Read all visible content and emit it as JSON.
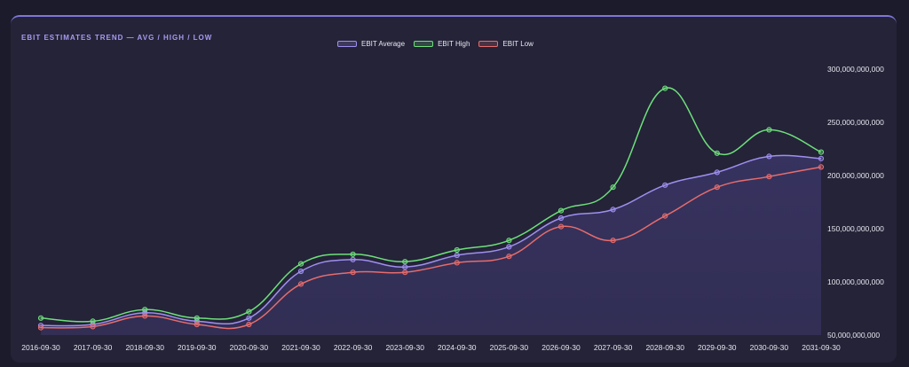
{
  "card": {
    "title": "EBIT ESTIMATES TREND — AVG / HIGH / LOW"
  },
  "chart_data": {
    "type": "line",
    "title": "EBIT ESTIMATES TREND — AVG / HIGH / LOW",
    "categories": [
      "2016-09-30",
      "2017-09-30",
      "2018-09-30",
      "2019-09-30",
      "2020-09-30",
      "2021-09-30",
      "2022-09-30",
      "2023-09-30",
      "2024-09-30",
      "2025-09-30",
      "2026-09-30",
      "2027-09-30",
      "2028-09-30",
      "2029-09-30",
      "2030-09-30",
      "2031-09-30"
    ],
    "series": [
      {
        "name": "EBIT Average",
        "color": "#9f8ff0",
        "values": [
          59000000000,
          60000000000,
          71000000000,
          63000000000,
          66000000000,
          110000000000,
          121000000000,
          114000000000,
          125000000000,
          133000000000,
          160000000000,
          168000000000,
          191000000000,
          203000000000,
          218000000000,
          216000000000
        ]
      },
      {
        "name": "EBIT High",
        "color": "#6ee07a",
        "values": [
          66000000000,
          63000000000,
          74000000000,
          66000000000,
          72000000000,
          117000000000,
          126000000000,
          119000000000,
          130000000000,
          139000000000,
          167000000000,
          189000000000,
          282000000000,
          221000000000,
          243000000000,
          222000000000
        ]
      },
      {
        "name": "EBIT Low",
        "color": "#e86c6c",
        "values": [
          57000000000,
          58000000000,
          68000000000,
          60000000000,
          60000000000,
          98000000000,
          109000000000,
          109000000000,
          118000000000,
          124000000000,
          152000000000,
          139000000000,
          162000000000,
          189000000000,
          199000000000,
          208000000000
        ]
      }
    ],
    "y_ticks": [
      "50,000,000,000",
      "100,000,000,000",
      "150,000,000,000",
      "200,000,000,000",
      "250,000,000,000",
      "300,000,000,000"
    ],
    "ylim": [
      50000000000,
      300000000000
    ],
    "area_fill_series": "EBIT Average",
    "legend_position": "top-center",
    "grid": false
  }
}
